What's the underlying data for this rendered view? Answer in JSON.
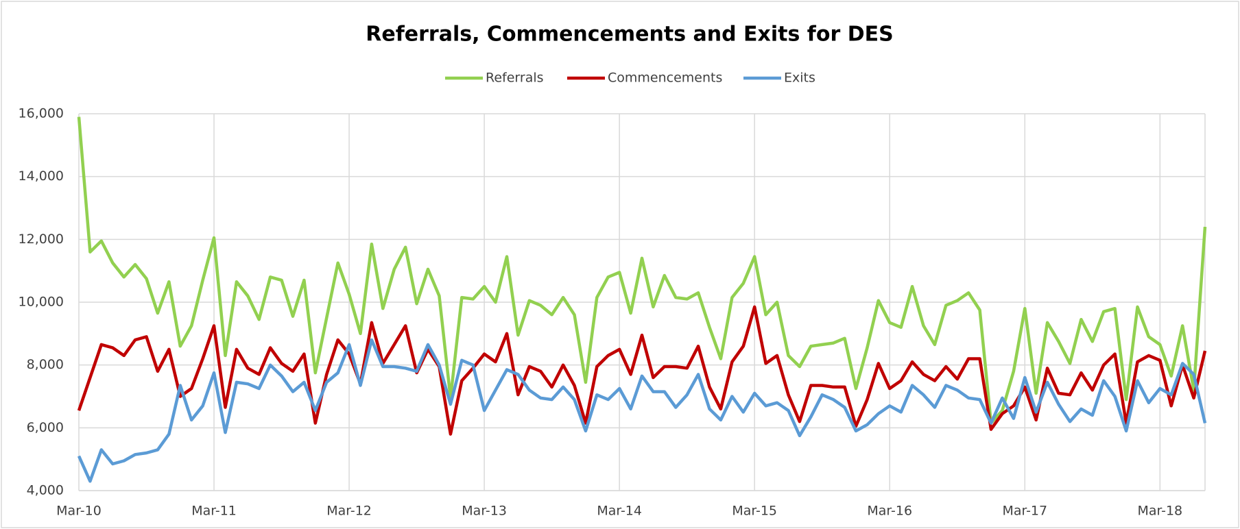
{
  "chart_data": {
    "type": "line",
    "title": "Referrals, Commencements and Exits for DES",
    "categories": [
      "Mar-10",
      null,
      null,
      null,
      null,
      null,
      null,
      null,
      null,
      null,
      null,
      null,
      "Mar-11",
      null,
      null,
      null,
      null,
      null,
      null,
      null,
      null,
      null,
      null,
      null,
      "Mar-12",
      null,
      null,
      null,
      null,
      null,
      null,
      null,
      null,
      null,
      null,
      null,
      "Mar-13",
      null,
      null,
      null,
      null,
      null,
      null,
      null,
      null,
      null,
      null,
      null,
      "Mar-14",
      null,
      null,
      null,
      null,
      null,
      null,
      null,
      null,
      null,
      null,
      null,
      "Mar-15",
      null,
      null,
      null,
      null,
      null,
      null,
      null,
      null,
      null,
      null,
      null,
      "Mar-16",
      null,
      null,
      null,
      null,
      null,
      null,
      null,
      null,
      null,
      null,
      null,
      "Mar-17",
      null,
      null,
      null,
      null,
      null,
      null,
      null,
      null,
      null,
      null,
      null,
      "Mar-18",
      null,
      null,
      null,
      null
    ],
    "series": [
      {
        "name": "Referrals",
        "color": "#92d050",
        "values": [
          15900,
          11600,
          11950,
          11250,
          10800,
          11200,
          10750,
          9650,
          10650,
          8600,
          9250,
          10700,
          12050,
          8300,
          10650,
          10200,
          9450,
          10800,
          10700,
          9550,
          10700,
          7750,
          9500,
          11250,
          10250,
          9000,
          11850,
          9800,
          11050,
          11750,
          9950,
          11050,
          10200,
          6950,
          10150,
          10100,
          10500,
          10000,
          11450,
          8950,
          10050,
          9900,
          9600,
          10150,
          9600,
          7450,
          10150,
          10800,
          10950,
          9650,
          11400,
          9850,
          10850,
          10150,
          10100,
          10300,
          9200,
          8200,
          10150,
          10600,
          11450,
          9600,
          10000,
          8300,
          7950,
          8600,
          8650,
          8700,
          8850,
          7250,
          8550,
          10050,
          9350,
          9200,
          10500,
          9250,
          8650,
          9900,
          10050,
          10300,
          9750,
          6150,
          6550,
          7800,
          9800,
          7100,
          9350,
          8750,
          8050,
          9450,
          8750,
          9700,
          9800,
          6900,
          9850,
          8900,
          8650,
          7650,
          9250,
          7200,
          12400
        ]
      },
      {
        "name": "Commencements",
        "color": "#c00000",
        "values": [
          6550,
          7600,
          8650,
          8550,
          8300,
          8800,
          8900,
          7800,
          8500,
          7000,
          7250,
          8200,
          9250,
          6650,
          8500,
          7900,
          7700,
          8550,
          8050,
          7800,
          8350,
          6150,
          7700,
          8800,
          8350,
          7400,
          9350,
          8050,
          8650,
          9250,
          7750,
          8500,
          7950,
          5800,
          7500,
          7900,
          8350,
          8100,
          9000,
          7050,
          7950,
          7800,
          7300,
          8000,
          7350,
          6150,
          7950,
          8300,
          8500,
          7700,
          8950,
          7600,
          7950,
          7950,
          7900,
          8600,
          7300,
          6600,
          8100,
          8600,
          9850,
          8050,
          8300,
          7050,
          6200,
          7350,
          7350,
          7300,
          7300,
          6050,
          6900,
          8050,
          7250,
          7500,
          8100,
          7700,
          7500,
          7950,
          7550,
          8200,
          8200,
          5950,
          6450,
          6700,
          7300,
          6250,
          7900,
          7100,
          7050,
          7750,
          7200,
          8000,
          8350,
          6150,
          8100,
          8300,
          8150,
          6700,
          8000,
          6950,
          8450
        ]
      },
      {
        "name": "Exits",
        "color": "#5b9bd5",
        "values": [
          5100,
          4300,
          5300,
          4850,
          4950,
          5150,
          5200,
          5300,
          5800,
          7350,
          6250,
          6700,
          7750,
          5850,
          7450,
          7400,
          7250,
          8000,
          7650,
          7150,
          7450,
          6550,
          7450,
          7750,
          8650,
          7350,
          8800,
          7950,
          7950,
          7900,
          7800,
          8650,
          8000,
          6750,
          8150,
          8000,
          6550,
          7200,
          7850,
          7700,
          7200,
          6950,
          6900,
          7300,
          6900,
          5900,
          7050,
          6900,
          7250,
          6600,
          7650,
          7150,
          7150,
          6650,
          7050,
          7700,
          6600,
          6250,
          7000,
          6500,
          7100,
          6700,
          6800,
          6550,
          5750,
          6350,
          7050,
          6900,
          6650,
          5900,
          6100,
          6450,
          6700,
          6500,
          7350,
          7050,
          6650,
          7350,
          7200,
          6950,
          6900,
          6150,
          6950,
          6300,
          7600,
          6500,
          7450,
          6750,
          6200,
          6600,
          6400,
          7500,
          7000,
          5900,
          7500,
          6800,
          7250,
          7050,
          8050,
          7700,
          6150
        ]
      }
    ],
    "ylim": [
      4000,
      16000
    ],
    "yticks": [
      {
        "value": 4000,
        "label": "4,000"
      },
      {
        "value": 6000,
        "label": "6,000"
      },
      {
        "value": 8000,
        "label": "8,000"
      },
      {
        "value": 10000,
        "label": "10,000"
      },
      {
        "value": 12000,
        "label": "12,000"
      },
      {
        "value": 14000,
        "label": "14,000"
      },
      {
        "value": 16000,
        "label": "16,000"
      }
    ],
    "grid": true,
    "legend": "top"
  }
}
